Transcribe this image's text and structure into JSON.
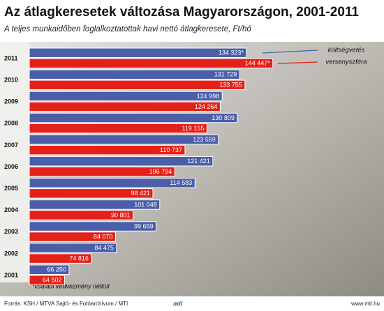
{
  "chart_data": {
    "type": "bar",
    "orientation": "horizontal",
    "title": "Az átlagkeresetek változása Magyarországon, 2001-2011",
    "subtitle": "A teljes munkaidőben foglalkoztatottak havi nettó átlagkeresete, Ft/hó",
    "categories": [
      "2011",
      "2010",
      "2009",
      "2008",
      "2007",
      "2006",
      "2005",
      "2004",
      "2003",
      "2002",
      "2001"
    ],
    "series": [
      {
        "name": "költségvetés",
        "color": "#4a5fa8",
        "values": [
          134323,
          131729,
          124998,
          130809,
          123559,
          121421,
          114583,
          101048,
          99659,
          84475,
          66250
        ],
        "value_labels": [
          "134 323*",
          "131 729",
          "124 998",
          "130 809",
          "123 559",
          "121 421",
          "114 583",
          "101 048",
          "99 659",
          "84 475",
          "66 250"
        ]
      },
      {
        "name": "versenyszféra",
        "color": "#e32119",
        "values": [
          144447,
          133755,
          124264,
          119155,
          110737,
          106794,
          98421,
          90801,
          84070,
          74816,
          64502
        ],
        "value_labels": [
          "144 447*",
          "133 755",
          "124 264",
          "119 155",
          "110 737",
          "106 794",
          "98 421",
          "90 801",
          "84 070",
          "74 816",
          "64 502"
        ]
      }
    ],
    "xlim": [
      51000,
      148000
    ],
    "note": "*családi kedvezmény nélkül",
    "source": "Forrás: KSH / MTVA Sajtó- és Fotóarchívum / MTI",
    "logo": "mti",
    "website": "www.mti.hu"
  }
}
